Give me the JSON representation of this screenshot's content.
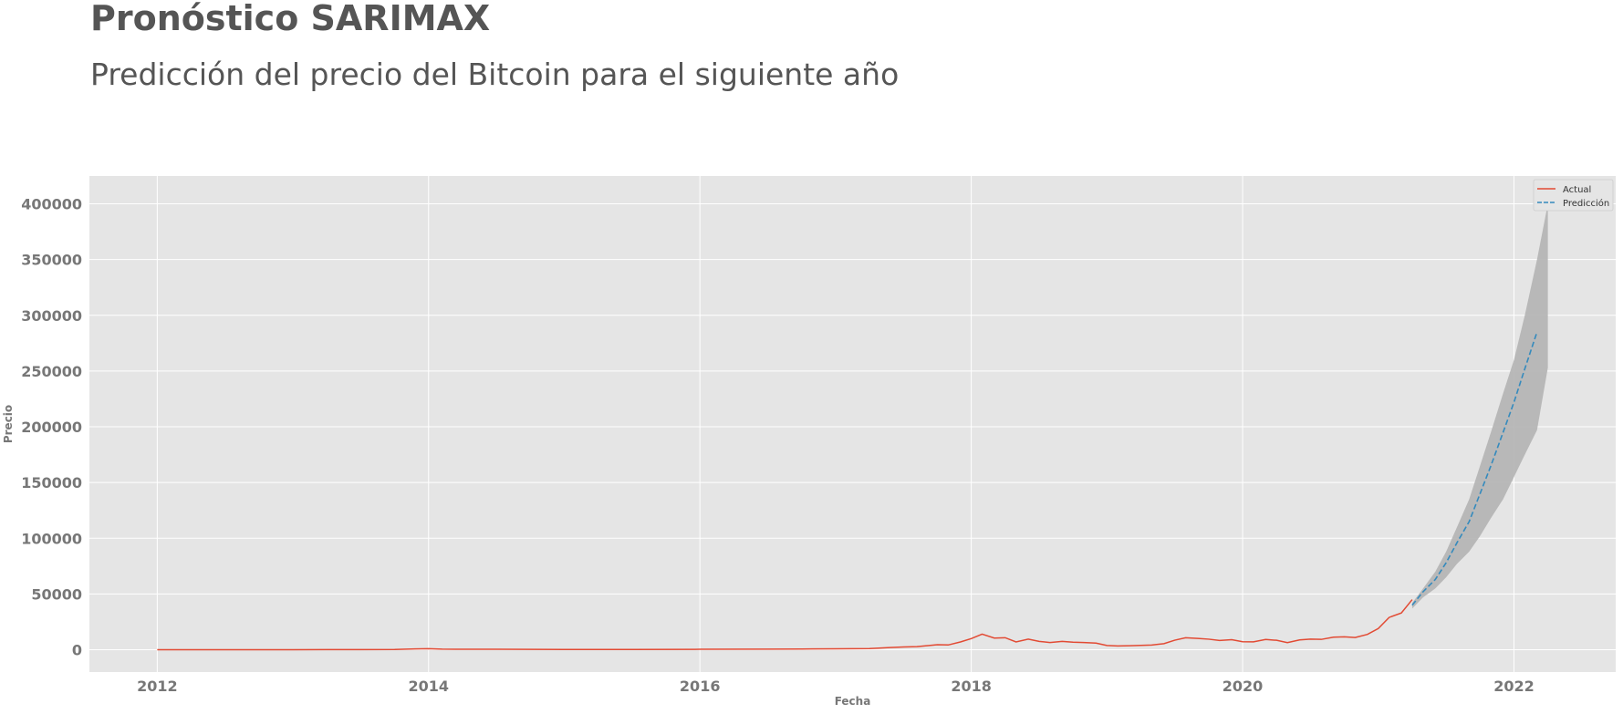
{
  "chart_data": {
    "type": "line",
    "title": "Pronóstico SARIMAX",
    "subtitle": "Predicción del precio del Bitcoin para el siguiente año",
    "xlabel": "Fecha",
    "ylabel": "Precio",
    "xlim": [
      2011.5,
      2022.75
    ],
    "ylim": [
      -20000,
      425000
    ],
    "x_ticks": [
      2012,
      2014,
      2016,
      2018,
      2020,
      2022
    ],
    "y_ticks": [
      0,
      50000,
      100000,
      150000,
      200000,
      250000,
      300000,
      350000,
      400000
    ],
    "x_tick_labels": [
      "2012",
      "2014",
      "2016",
      "2018",
      "2020",
      "2022"
    ],
    "y_tick_labels": [
      "0",
      "50000",
      "100000",
      "150000",
      "200000",
      "250000",
      "300000",
      "350000",
      "400000"
    ],
    "grid": true,
    "legend_position": "top-right",
    "colors": {
      "background": "#e5e5e5",
      "grid": "#ffffff",
      "actual": "#e24a33",
      "prediction": "#348abd",
      "band": "#b3b3b3"
    },
    "series": [
      {
        "name": "Actual",
        "style": "solid",
        "x": [
          2012.0,
          2012.5,
          2013.0,
          2013.25,
          2013.5,
          2013.75,
          2013.9,
          2014.0,
          2014.1,
          2014.2,
          2014.35,
          2014.5,
          2014.75,
          2015.0,
          2015.5,
          2016.0,
          2016.5,
          2016.75,
          2017.0,
          2017.25,
          2017.4,
          2017.5,
          2017.6,
          2017.75,
          2017.83,
          2017.92,
          2018.0,
          2018.08,
          2018.17,
          2018.25,
          2018.33,
          2018.42,
          2018.5,
          2018.58,
          2018.67,
          2018.75,
          2018.83,
          2018.92,
          2019.0,
          2019.08,
          2019.17,
          2019.25,
          2019.33,
          2019.42,
          2019.5,
          2019.58,
          2019.67,
          2019.75,
          2019.83,
          2019.92,
          2020.0,
          2020.08,
          2020.17,
          2020.25,
          2020.33,
          2020.42,
          2020.5,
          2020.58,
          2020.67,
          2020.75,
          2020.83,
          2020.92,
          2021.0,
          2021.08,
          2021.17,
          2021.25
        ],
        "values": [
          5,
          10,
          20,
          100,
          100,
          200,
          800,
          1000,
          600,
          500,
          450,
          500,
          350,
          250,
          250,
          400,
          600,
          700,
          900,
          1100,
          2000,
          2500,
          2800,
          4500,
          4300,
          7000,
          10000,
          14000,
          10500,
          10800,
          7000,
          9500,
          7500,
          6500,
          7500,
          6800,
          6500,
          6000,
          3800,
          3400,
          3600,
          3900,
          4200,
          5500,
          8600,
          10800,
          10200,
          9500,
          8300,
          9000,
          7200,
          7100,
          9200,
          8500,
          6400,
          8800,
          9500,
          9300,
          11300,
          11600,
          11000,
          13800,
          19000,
          29000,
          33000,
          45000
        ]
      },
      {
        "name": "Predicción",
        "style": "dashed",
        "x": [
          2021.25,
          2021.33,
          2021.42,
          2021.5,
          2021.58,
          2021.67,
          2021.75,
          2021.83,
          2021.92,
          2022.0,
          2022.08,
          2022.17
        ],
        "values": [
          40000,
          52000,
          63000,
          78000,
          96000,
          115000,
          140000,
          165000,
          195000,
          222000,
          252000,
          285000
        ],
        "lower": [
          37000,
          47000,
          55000,
          65000,
          77000,
          88000,
          102000,
          118000,
          135000,
          155000,
          175000,
          197000
        ],
        "upper": [
          42000,
          55000,
          70000,
          88000,
          110000,
          135000,
          165000,
          195000,
          230000,
          260000,
          300000,
          350000
        ],
        "band_x_end": 2022.25,
        "band_lower_end": 253000,
        "band_upper_end": 400000
      }
    ]
  }
}
